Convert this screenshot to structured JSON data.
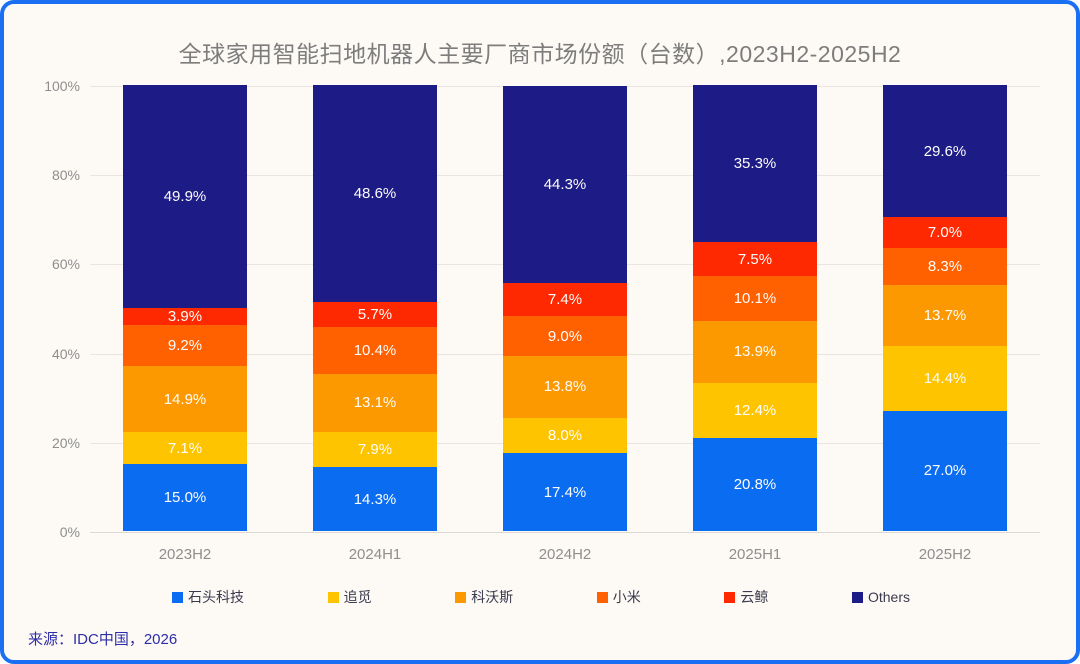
{
  "title": "全球家用智能扫地机器人主要厂商市场份额（台数）,2023H2-2025H2",
  "source": "来源：IDC中国，2026",
  "colors": {
    "background": "#fdfaf5",
    "border": "#1a6ff2",
    "gridline": "#eae5e0",
    "title_text": "#7d7d7d",
    "axis_text": "#8e8e8e",
    "legend_text": "#3a3a4e",
    "source_text": "#2d2da6",
    "bar_label_text": "#fdfdfd"
  },
  "y_axis": {
    "ticks": [
      "0%",
      "20%",
      "40%",
      "60%",
      "80%",
      "100%"
    ],
    "min": 0,
    "max": 100
  },
  "chart_data": {
    "type": "bar",
    "stacked": true,
    "title": "全球家用智能扫地机器人主要厂商市场份额（台数）,2023H2-2025H2",
    "xlabel": "",
    "ylabel": "",
    "ylim": [
      0,
      100
    ],
    "grid": true,
    "legend_position": "bottom",
    "categories": [
      "2023H2",
      "2024H1",
      "2024H2",
      "2025H1",
      "2025H2"
    ],
    "series": [
      {
        "name": "石头科技",
        "color": "#0a6cf0",
        "values": [
          15.0,
          14.3,
          17.4,
          20.8,
          27.0
        ]
      },
      {
        "name": "追觅",
        "color": "#ffc400",
        "values": [
          7.1,
          7.9,
          8.0,
          12.4,
          14.4
        ]
      },
      {
        "name": "科沃斯",
        "color": "#fc9800",
        "values": [
          14.9,
          13.1,
          13.8,
          13.9,
          13.7
        ]
      },
      {
        "name": "小米",
        "color": "#ff6000",
        "values": [
          9.2,
          10.4,
          9.0,
          10.1,
          8.3
        ]
      },
      {
        "name": "云鲸",
        "color": "#fe2900",
        "values": [
          3.9,
          5.7,
          7.4,
          7.5,
          7.0
        ]
      },
      {
        "name": "Others",
        "color": "#1d1b86",
        "values": [
          49.9,
          48.6,
          44.3,
          35.3,
          29.6
        ]
      }
    ]
  },
  "legend": {
    "items": [
      "石头科技",
      "追觅",
      "科沃斯",
      "小米",
      "云鲸",
      "Others"
    ]
  }
}
